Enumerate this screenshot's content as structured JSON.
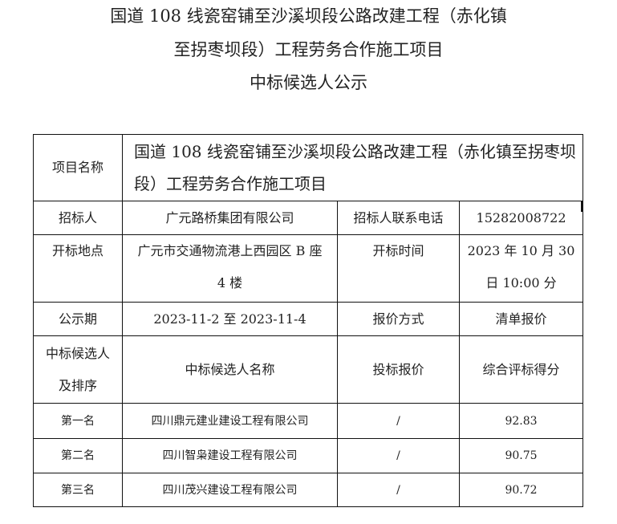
{
  "title_lines": [
    "国道 108 线瓷窑铺至沙溪坝段公路改建工程（赤化镇",
    "至拐枣坝段）工程劳务合作施工项目",
    "中标候选人公示"
  ],
  "info": {
    "project_name_label": "项目名称",
    "project_name": "国道 108 线瓷窑铺至沙溪坝段公路改建工程（赤化镇至拐枣坝段）工程劳务合作施工项目",
    "tenderer_label": "招标人",
    "tenderer": "广元路桥集团有限公司",
    "phone_label": "招标人联系电话",
    "phone": "15282008722",
    "location_label": "开标地点",
    "location": "广元市交通物流港上西园区 B 座 4 楼",
    "time_label": "开标时间",
    "time": "2023 年 10 月 30 日 10:00 分",
    "period_label": "公示期",
    "period": "2023-11-2 至 2023-11-4",
    "quote_method_label": "报价方式",
    "quote_method": "清单报价"
  },
  "candidates_header": {
    "rank": "中标候选人及排序",
    "name": "中标候选人名称",
    "bid": "投标报价",
    "score": "综合评标得分"
  },
  "candidates": [
    {
      "rank": "第一名",
      "name": "四川鼎元建业建设工程有限公司",
      "bid": "/",
      "score": "92.83"
    },
    {
      "rank": "第二名",
      "name": "四川智枭建设工程有限公司",
      "bid": "/",
      "score": "90.75"
    },
    {
      "rank": "第三名",
      "name": "四川茂兴建设工程有限公司",
      "bid": "/",
      "score": "90.72"
    }
  ]
}
